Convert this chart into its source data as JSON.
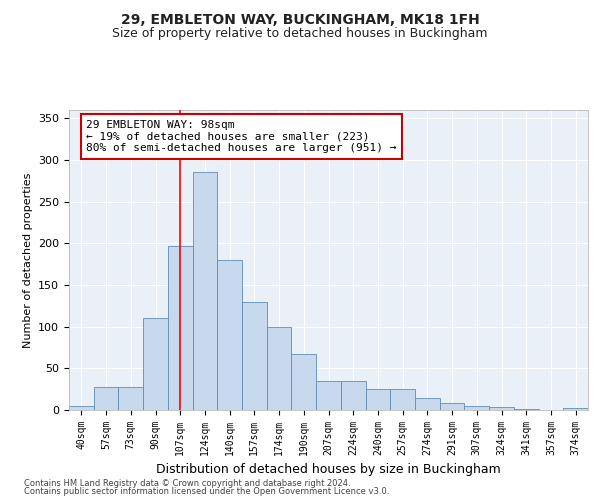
{
  "title1": "29, EMBLETON WAY, BUCKINGHAM, MK18 1FH",
  "title2": "Size of property relative to detached houses in Buckingham",
  "xlabel": "Distribution of detached houses by size in Buckingham",
  "ylabel": "Number of detached properties",
  "categories": [
    "40sqm",
    "57sqm",
    "73sqm",
    "90sqm",
    "107sqm",
    "124sqm",
    "140sqm",
    "157sqm",
    "174sqm",
    "190sqm",
    "207sqm",
    "224sqm",
    "240sqm",
    "257sqm",
    "274sqm",
    "291sqm",
    "307sqm",
    "324sqm",
    "341sqm",
    "357sqm",
    "374sqm"
  ],
  "values": [
    5,
    28,
    28,
    110,
    197,
    286,
    180,
    130,
    100,
    67,
    35,
    35,
    25,
    25,
    15,
    8,
    5,
    4,
    1,
    0,
    2
  ],
  "bar_color": "#c9d9ed",
  "bar_edge_color": "#5f8db4",
  "red_line_index": 4,
  "annotation_text": "29 EMBLETON WAY: 98sqm\n← 19% of detached houses are smaller (223)\n80% of semi-detached houses are larger (951) →",
  "annotation_box_color": "#ffffff",
  "annotation_box_edge": "#cc0000",
  "footer1": "Contains HM Land Registry data © Crown copyright and database right 2024.",
  "footer2": "Contains public sector information licensed under the Open Government Licence v3.0.",
  "ylim": [
    0,
    360
  ],
  "background_color": "#eaf0f8",
  "grid_color": "#ffffff",
  "title1_fontsize": 10,
  "title2_fontsize": 9,
  "ylabel_fontsize": 8,
  "xlabel_fontsize": 9,
  "tick_fontsize": 7,
  "ytick_fontsize": 8,
  "footer_fontsize": 6,
  "ann_fontsize": 8
}
